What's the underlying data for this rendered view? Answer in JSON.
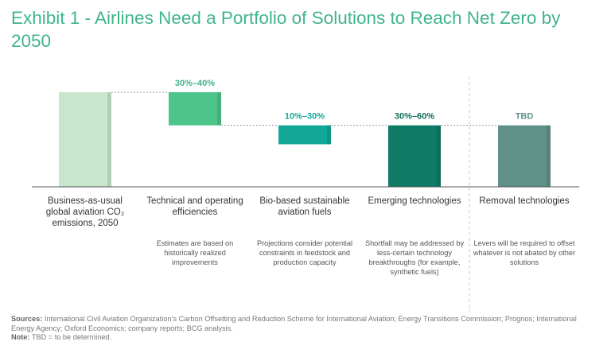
{
  "title": "Exhibit 1 - Airlines Need a Portfolio of Solutions to Reach Net Zero by 2050",
  "chart_data": {
    "type": "bar",
    "subtype": "waterfall",
    "categories": [
      "Business-as-usual global aviation CO₂ emissions, 2050",
      "Technical and operating efficiencies",
      "Bio-based sustainable aviation fuels",
      "Emerging technologies",
      "Removal technologies"
    ],
    "data_labels": [
      "",
      "30%–40%",
      "10%–30%",
      "30%–60%",
      "TBD"
    ],
    "notes": [
      "",
      "Estimates are based on historically realized improvements",
      "Projections consider potential constraints in feedstock and production capacity",
      "Shortfall may be addressed by less-certain technology breakthroughs (for example, synthetic fuels)",
      "Levers will be required to offset whatever is not abated by other solutions"
    ],
    "bars": [
      {
        "start": 0,
        "end": 100
      },
      {
        "start": 100,
        "end": 65
      },
      {
        "start": 65,
        "end": 45
      },
      {
        "start": 65,
        "end": 0
      },
      {
        "start": 65,
        "end": 0
      }
    ],
    "ylim": [
      0,
      100
    ],
    "colors": [
      "#c8e6cc",
      "#4dc48a",
      "#12a898",
      "#0f7a66",
      "#5f9188"
    ],
    "label_colors": [
      "#333333",
      "#3fb58a",
      "#12a898",
      "#0f6b5a",
      "#5f9188"
    ],
    "grid": false,
    "legend": "none"
  },
  "footer": {
    "sources_label": "Sources:",
    "sources_text": "International Civil Aviation Organization’s Carbon Offsetting and Reduction Scheme for International Aviation; Energy Transitions Commission; Prognos; International Energy Agency; Oxford Economics; company reports; BCG analysis.",
    "note_label": "Note:",
    "note_text": "TBD = to be determined."
  }
}
